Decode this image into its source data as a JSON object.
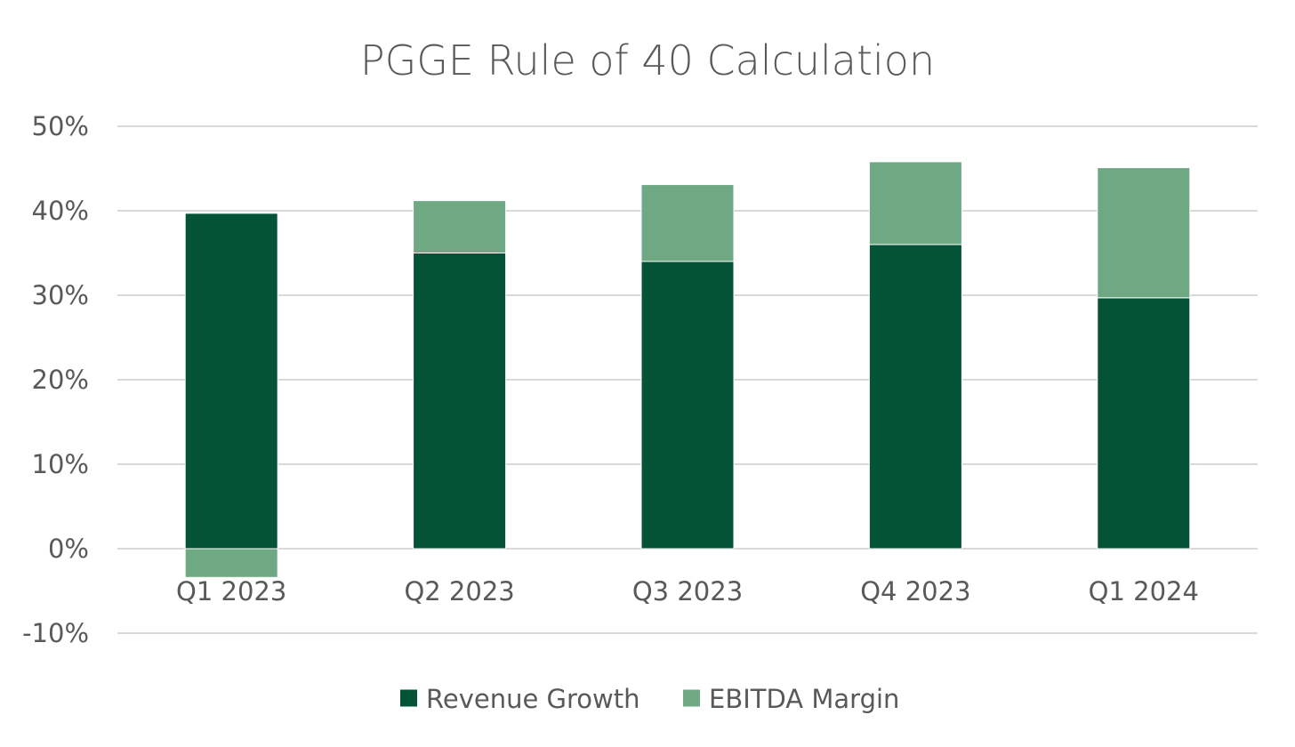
{
  "chart_data": {
    "type": "bar",
    "stacked": true,
    "title": "PGGE Rule of 40 Calculation",
    "xlabel": "",
    "ylabel": "",
    "categories": [
      "Q1 2023",
      "Q2 2023",
      "Q3 2023",
      "Q4 2023",
      "Q1 2024"
    ],
    "series": [
      {
        "name": "Revenue Growth",
        "color": "#045336",
        "values": [
          39.7,
          35.0,
          34.0,
          36.0,
          29.7
        ]
      },
      {
        "name": "EBITDA Margin",
        "color": "#6fa984",
        "values": [
          -3.4,
          6.2,
          9.1,
          9.8,
          15.4
        ]
      }
    ],
    "ylim": [
      -10,
      50
    ],
    "yticks": [
      50,
      40,
      30,
      20,
      10,
      0,
      -10
    ],
    "ytick_labels": [
      "50%",
      "40%",
      "30%",
      "20%",
      "10%",
      "0%",
      "-10%"
    ],
    "grid": true,
    "legend_position": "bottom"
  }
}
